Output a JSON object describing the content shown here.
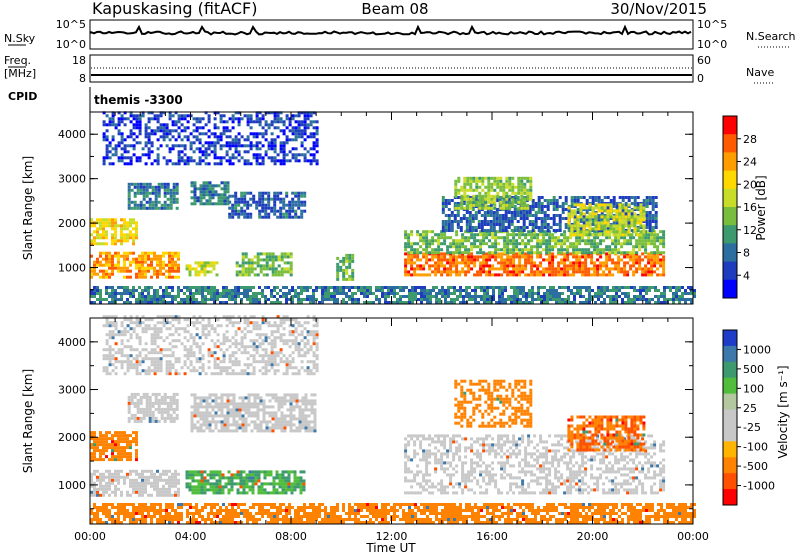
{
  "header": {
    "station": "Kapuskasing (fitACF)",
    "beam": "Beam 08",
    "date": "30/Nov/2015"
  },
  "strips": {
    "nsky_label": "N.Sky",
    "nsky_ticks": [
      "10^5",
      "10^0"
    ],
    "nsearch_label": "N.Search",
    "freq_label": "Freq.",
    "freq_unit": "[MHz]",
    "freq_ticks": [
      "18",
      "8"
    ],
    "nave_ticks": [
      "60",
      "0"
    ],
    "nave_label": "Nave",
    "cpid_label": "CPID",
    "cpid_value": "themis -3300"
  },
  "colorbars": {
    "power": {
      "label": "Power [dB]",
      "ticks": [
        "28",
        "24",
        "20",
        "16",
        "12",
        "8",
        "4"
      ],
      "colors": [
        "#ff0000",
        "#ff5a00",
        "#ff9c00",
        "#ffd800",
        "#c8dc2a",
        "#78be3c",
        "#3c9a6e",
        "#2d6ea0",
        "#1e3cbe",
        "#0000ff"
      ]
    },
    "velocity": {
      "label": "Velocity [m s⁻¹]",
      "ticks": [
        "1000",
        "500",
        "100",
        "25",
        "-25",
        "-100",
        "-500",
        "-1000"
      ],
      "colors": [
        "#1e3cc8",
        "#3c78aa",
        "#3c9a6e",
        "#50be3c",
        "#b4c8a0",
        "#c8c8c8",
        "#c8c8c8",
        "#ffb400",
        "#ff8200",
        "#ff5000",
        "#ff0000"
      ]
    }
  },
  "chart_data": [
    {
      "type": "heatmap",
      "title": "Power",
      "ylabel": "Slant Range [km]",
      "x_ticks": [
        "00:00",
        "04:00",
        "08:00",
        "12:00",
        "16:00",
        "20:00",
        "00:00"
      ],
      "y_ticks": [
        "4000",
        "3000",
        "2000",
        "1000"
      ],
      "xlim": [
        0,
        24
      ],
      "ylim": [
        180,
        4500
      ],
      "regions": [
        {
          "t0": 0.0,
          "t1": 1.8,
          "r0": 1500,
          "r1": 2100,
          "v": 20
        },
        {
          "t0": 0.0,
          "t1": 3.5,
          "r0": 750,
          "r1": 1300,
          "v": 24
        },
        {
          "t0": 1.5,
          "t1": 3.5,
          "r0": 2300,
          "r1": 2900,
          "v": 10
        },
        {
          "t0": 3.8,
          "t1": 5.0,
          "r0": 800,
          "r1": 1100,
          "v": 18
        },
        {
          "t0": 4.0,
          "t1": 5.5,
          "r0": 2400,
          "r1": 2900,
          "v": 10
        },
        {
          "t0": 5.5,
          "t1": 8.5,
          "r0": 2100,
          "r1": 2700,
          "v": 8
        },
        {
          "t0": 5.8,
          "t1": 8.0,
          "r0": 800,
          "r1": 1300,
          "v": 14
        },
        {
          "t0": 9.8,
          "t1": 10.5,
          "r0": 700,
          "r1": 1300,
          "v": 14
        },
        {
          "t0": 12.5,
          "t1": 22.8,
          "r0": 800,
          "r1": 1300,
          "v": 26
        },
        {
          "t0": 12.5,
          "t1": 22.8,
          "r0": 1300,
          "r1": 1800,
          "v": 14
        },
        {
          "t0": 14.0,
          "t1": 22.5,
          "r0": 1800,
          "r1": 2600,
          "v": 8
        },
        {
          "t0": 14.5,
          "t1": 17.5,
          "r0": 2300,
          "r1": 3000,
          "v": 16
        },
        {
          "t0": 19.0,
          "t1": 22.0,
          "r0": 1700,
          "r1": 2400,
          "v": 18
        },
        {
          "t0": 0.0,
          "t1": 24.0,
          "r0": 180,
          "r1": 550,
          "v": 10
        },
        {
          "t0": 0.5,
          "t1": 9.0,
          "r0": 3300,
          "r1": 4500,
          "v": 6
        }
      ]
    },
    {
      "type": "heatmap",
      "title": "Velocity",
      "ylabel": "Slant Range [km]",
      "xlabel": "Time UT",
      "x_ticks": [
        "00:00",
        "04:00",
        "08:00",
        "12:00",
        "16:00",
        "20:00",
        "00:00"
      ],
      "y_ticks": [
        "4000",
        "3000",
        "2000",
        "1000"
      ],
      "xlim": [
        0,
        24
      ],
      "ylim": [
        180,
        4500
      ],
      "regions": [
        {
          "t0": 0.0,
          "t1": 1.8,
          "r0": 1500,
          "r1": 2100,
          "v": -200
        },
        {
          "t0": 0.0,
          "t1": 3.5,
          "r0": 750,
          "r1": 1300,
          "v": 0
        },
        {
          "t0": 1.5,
          "t1": 3.5,
          "r0": 2300,
          "r1": 2900,
          "v": 0
        },
        {
          "t0": 3.8,
          "t1": 8.5,
          "r0": 800,
          "r1": 1300,
          "v": 60
        },
        {
          "t0": 4.0,
          "t1": 9.0,
          "r0": 2100,
          "r1": 2900,
          "v": 0
        },
        {
          "t0": 12.5,
          "t1": 22.8,
          "r0": 800,
          "r1": 2000,
          "v": 0
        },
        {
          "t0": 14.5,
          "t1": 17.5,
          "r0": 2200,
          "r1": 3200,
          "v": -300
        },
        {
          "t0": 19.0,
          "t1": 22.0,
          "r0": 1700,
          "r1": 2400,
          "v": -400
        },
        {
          "t0": 0.0,
          "t1": 24.0,
          "r0": 180,
          "r1": 600,
          "v": -150
        },
        {
          "t0": 0.5,
          "t1": 9.0,
          "r0": 3300,
          "r1": 4500,
          "v": 0
        }
      ]
    }
  ]
}
